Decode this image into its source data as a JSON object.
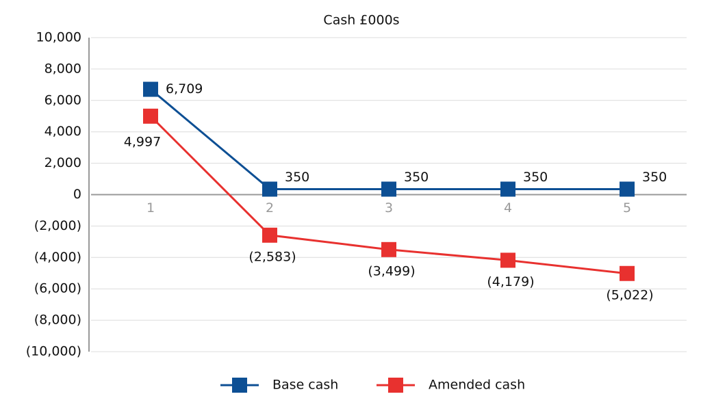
{
  "chart_data": {
    "type": "line",
    "title": "Cash £000s",
    "categories": [
      "1",
      "2",
      "3",
      "4",
      "5"
    ],
    "series": [
      {
        "name": "Base cash",
        "color": "#0d4f94",
        "values": [
          6709,
          350,
          350,
          350,
          350
        ],
        "value_labels": [
          "6,709",
          "350",
          "350",
          "350",
          "350"
        ]
      },
      {
        "name": "Amended cash",
        "color": "#e8312f",
        "values": [
          4997,
          -2583,
          -3499,
          -4179,
          -5022
        ],
        "value_labels": [
          "4,997",
          "(2,583)",
          "(3,499)",
          "(4,179)",
          "(5,022)"
        ]
      }
    ],
    "ylim": [
      -10000,
      10000
    ],
    "yticks": [
      {
        "value": -10000,
        "label": "(10,000)"
      },
      {
        "value": -8000,
        "label": "(8,000)"
      },
      {
        "value": -6000,
        "label": "(6,000)"
      },
      {
        "value": -4000,
        "label": "(4,000)"
      },
      {
        "value": -2000,
        "label": "(2,000)"
      },
      0,
      {
        "value": 2000,
        "label": "2,000"
      },
      {
        "value": 4000,
        "label": "4,000"
      },
      {
        "value": 6000,
        "label": "6,000"
      },
      {
        "value": 8000,
        "label": "8,000"
      },
      {
        "value": 10000,
        "label": "10,000"
      }
    ],
    "grid": true,
    "legend": "bottom"
  }
}
